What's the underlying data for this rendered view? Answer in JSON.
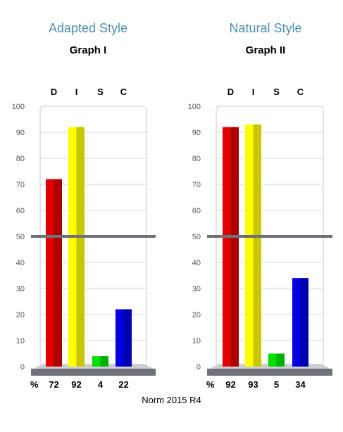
{
  "page": {
    "style_titles": [
      "Adapted Style",
      "Natural Style"
    ],
    "graph_titles": [
      "Graph I",
      "Graph II"
    ],
    "percent_label": "%",
    "footer": "Norm 2015 R4"
  },
  "chart_data": [
    {
      "type": "bar",
      "title": "Graph I",
      "subtitle": "Adapted Style",
      "categories": [
        "D",
        "I",
        "S",
        "C"
      ],
      "values": [
        72,
        92,
        4,
        22
      ],
      "value_labels": [
        "72",
        "92",
        "4",
        "22"
      ],
      "ylim": [
        0,
        100
      ],
      "yticks": [
        0,
        10,
        20,
        30,
        40,
        50,
        60,
        70,
        80,
        90,
        100
      ],
      "midline": 50,
      "grid": true,
      "bar_colors": [
        "#e00000",
        "#ffff00",
        "#00e000",
        "#0000e0"
      ]
    },
    {
      "type": "bar",
      "title": "Graph II",
      "subtitle": "Natural Style",
      "categories": [
        "D",
        "I",
        "S",
        "C"
      ],
      "values": [
        92,
        93,
        5,
        34
      ],
      "value_labels": [
        "92",
        "93",
        "5",
        "34"
      ],
      "ylim": [
        0,
        100
      ],
      "yticks": [
        0,
        10,
        20,
        30,
        40,
        50,
        60,
        70,
        80,
        90,
        100
      ],
      "midline": 50,
      "grid": true,
      "bar_colors": [
        "#e00000",
        "#ffff00",
        "#00e000",
        "#0000e0"
      ]
    }
  ]
}
